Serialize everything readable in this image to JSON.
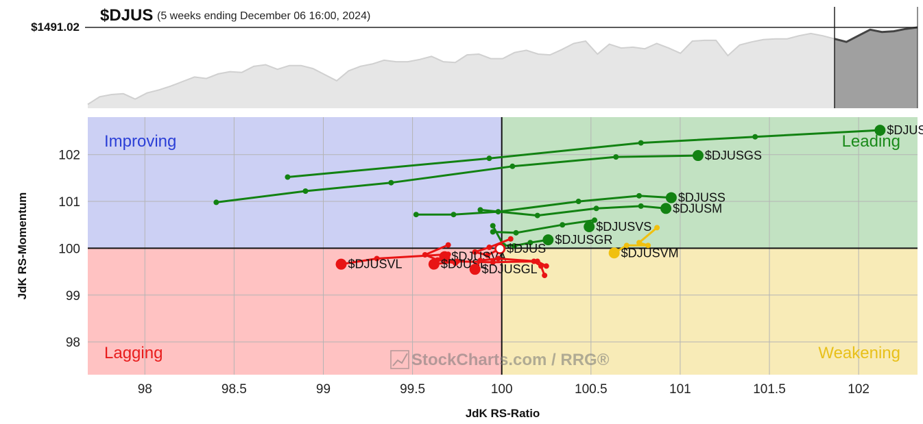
{
  "header": {
    "symbol": "$DJUS",
    "subtitle": "(5 weeks ending December 06 16:00, 2024)",
    "price": "$1491.02"
  },
  "quadrants": {
    "improving": {
      "label": "Improving",
      "color": "#2b3fd6",
      "fill": "#ccd0f4"
    },
    "leading": {
      "label": "Leading",
      "color": "#1a8a1a",
      "fill": "#c2e2c2"
    },
    "lagging": {
      "label": "Lagging",
      "color": "#e81c1c",
      "fill": "#ffc2c2"
    },
    "weakening": {
      "label": "Weakening",
      "color": "#e8c01a",
      "fill": "#f8ebb7"
    }
  },
  "watermark": "StockCharts.com / RRG®",
  "chart_data": {
    "type": "scatter",
    "xlabel": "JdK RS-Ratio",
    "ylabel": "JdK RS-Momentum",
    "xlim": [
      97.68,
      102.33
    ],
    "ylim": [
      97.3,
      102.8
    ],
    "xticks": [
      98,
      98.5,
      99,
      99.5,
      100,
      100.5,
      101,
      101.5,
      102
    ],
    "yticks": [
      98,
      99,
      100,
      101,
      102
    ],
    "grid": true,
    "center": [
      100,
      100
    ],
    "series": [
      {
        "name": "$DJUSGM",
        "color": "#128212",
        "points": [
          [
            98.8,
            101.52
          ],
          [
            99.93,
            101.92
          ],
          [
            100.78,
            102.25
          ],
          [
            101.42,
            102.38
          ],
          [
            102.12,
            102.52
          ]
        ]
      },
      {
        "name": "$DJUSGS",
        "color": "#128212",
        "points": [
          [
            98.4,
            100.98
          ],
          [
            98.9,
            101.22
          ],
          [
            99.38,
            101.4
          ],
          [
            100.06,
            101.75
          ],
          [
            100.64,
            101.95
          ],
          [
            101.1,
            101.98
          ]
        ]
      },
      {
        "name": "$DJUSS",
        "color": "#128212",
        "points": [
          [
            99.52,
            100.72
          ],
          [
            99.73,
            100.72
          ],
          [
            99.98,
            100.78
          ],
          [
            100.43,
            101.0
          ],
          [
            100.77,
            101.12
          ],
          [
            100.95,
            101.08
          ]
        ]
      },
      {
        "name": "$DJUSM",
        "color": "#128212",
        "points": [
          [
            99.88,
            100.82
          ],
          [
            100.2,
            100.7
          ],
          [
            100.53,
            100.85
          ],
          [
            100.78,
            100.9
          ],
          [
            100.92,
            100.85
          ]
        ]
      },
      {
        "name": "$DJUSVS",
        "color": "#128212",
        "points": [
          [
            99.95,
            100.35
          ],
          [
            100.08,
            100.33
          ],
          [
            100.34,
            100.5
          ],
          [
            100.52,
            100.6
          ],
          [
            100.49,
            100.46
          ]
        ]
      },
      {
        "name": "$DJUSGR",
        "color": "#128212",
        "points": [
          [
            99.95,
            100.48
          ],
          [
            100.01,
            100.06
          ],
          [
            100.07,
            100.05
          ],
          [
            100.16,
            100.12
          ],
          [
            100.26,
            100.18
          ]
        ]
      },
      {
        "name": "$DJUSVM",
        "color": "#f0c010",
        "points": [
          [
            100.87,
            100.44
          ],
          [
            100.77,
            100.12
          ],
          [
            100.82,
            100.06
          ],
          [
            100.7,
            100.06
          ],
          [
            100.63,
            99.9
          ]
        ]
      },
      {
        "name": "$DJUS",
        "color": "#e81414",
        "points": [
          [
            100.05,
            100.2
          ],
          [
            99.93,
            100.02
          ],
          [
            99.85,
            99.92
          ],
          [
            99.92,
            99.85
          ],
          [
            99.99,
            99.99
          ]
        ]
      },
      {
        "name": "$DJUSVA",
        "color": "#e81414",
        "points": [
          [
            99.7,
            100.07
          ],
          [
            99.57,
            99.86
          ],
          [
            99.64,
            99.75
          ],
          [
            99.74,
            99.68
          ],
          [
            99.68,
            99.82
          ]
        ]
      },
      {
        "name": "$DJUSVL",
        "color": "#e81414",
        "points": [
          [
            99.7,
            99.87
          ],
          [
            99.3,
            99.78
          ],
          [
            99.1,
            99.66
          ]
        ]
      },
      {
        "name": "$DJUSL",
        "color": "#e81414",
        "points": [
          [
            100.24,
            99.42
          ],
          [
            100.22,
            99.62
          ],
          [
            100.18,
            99.72
          ],
          [
            99.95,
            99.7
          ],
          [
            99.75,
            99.72
          ],
          [
            99.62,
            99.66
          ]
        ]
      },
      {
        "name": "$DJUSGL",
        "color": "#e81414",
        "points": [
          [
            100.25,
            99.62
          ],
          [
            100.2,
            99.72
          ],
          [
            99.98,
            99.78
          ],
          [
            99.88,
            99.74
          ],
          [
            99.85,
            99.55
          ]
        ]
      }
    ],
    "price_line": {
      "values": [
        1390,
        1400,
        1403,
        1404,
        1397,
        1405,
        1409,
        1414,
        1420,
        1426,
        1424,
        1430,
        1433,
        1432,
        1440,
        1442,
        1436,
        1441,
        1441,
        1437,
        1429,
        1421,
        1434,
        1440,
        1443,
        1448,
        1446,
        1446,
        1449,
        1453,
        1446,
        1445,
        1455,
        1456,
        1450,
        1450,
        1458,
        1461,
        1456,
        1455,
        1462,
        1470,
        1473,
        1456,
        1469,
        1464,
        1465,
        1463,
        1470,
        1464,
        1457,
        1473,
        1474,
        1474,
        1454,
        1468,
        1472,
        1475,
        1476,
        1476,
        1480,
        1483,
        1480,
        1476,
        1472,
        1480,
        1488,
        1485,
        1486,
        1489,
        1491
      ],
      "highlight_from_index": 63
    }
  }
}
